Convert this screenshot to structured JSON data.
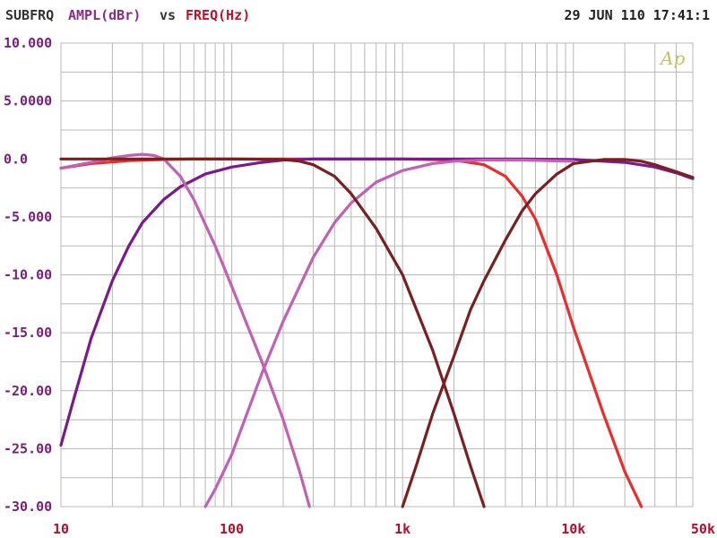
{
  "header": {
    "prefix": "SUBFRQ",
    "yaxis": "AMPL(dBr)",
    "vs": "vs",
    "xaxis": "FREQ(Hz)",
    "timestamp": "29 JUN 110 17:41:1"
  },
  "logo": "Ap",
  "colors": {
    "prefix": "#333333",
    "yaxis": "#8a2a8a",
    "vs": "#333333",
    "xaxis": "#c0102a",
    "grid": "#b8b8b8",
    "axis_text_y": "#7a1f7a",
    "axis_text_x": "#b0102a"
  },
  "chart_data": {
    "type": "line",
    "x_scale": "log",
    "xlim": [
      10,
      50000
    ],
    "ylim": [
      -30,
      10
    ],
    "grid": true,
    "xlabel": "FREQ(Hz)",
    "ylabel": "AMPL(dBr)",
    "y_ticks": [
      {
        "value": 10,
        "label": "10.000"
      },
      {
        "value": 5,
        "label": "5.0000"
      },
      {
        "value": 0,
        "label": "0.0"
      },
      {
        "value": -5,
        "label": "-5.000"
      },
      {
        "value": -10,
        "label": "-10.00"
      },
      {
        "value": -15,
        "label": "-15.00"
      },
      {
        "value": -20,
        "label": "-20.00"
      },
      {
        "value": -25,
        "label": "-25.00"
      },
      {
        "value": -30,
        "label": "-30.00"
      }
    ],
    "x_ticks": [
      {
        "value": 10,
        "label": "10"
      },
      {
        "value": 100,
        "label": "100"
      },
      {
        "value": 1000,
        "label": "1k"
      },
      {
        "value": 10000,
        "label": "10k"
      },
      {
        "value": 50000,
        "label": "50k"
      }
    ],
    "series": [
      {
        "color": "#ee2b2b",
        "x": [
          10,
          15,
          25,
          40,
          60,
          100,
          300,
          1000,
          2000,
          3000,
          4000,
          5000,
          6000,
          8000,
          10000,
          15000,
          20000,
          25000
        ],
        "y": [
          -0.8,
          -0.4,
          -0.15,
          -0.05,
          0,
          0,
          0,
          0,
          -0.1,
          -0.5,
          -1.5,
          -3.2,
          -5.2,
          -10,
          -14.5,
          -22,
          -27,
          -30
        ]
      },
      {
        "color": "#7a1a8a",
        "x": [
          10,
          12,
          15,
          20,
          25,
          30,
          40,
          50,
          70,
          100,
          150,
          200,
          300,
          1000,
          3000,
          5000,
          10000,
          20000,
          30000,
          40000,
          50000
        ],
        "y": [
          -24.7,
          -20.5,
          -15.5,
          -10.5,
          -7.5,
          -5.5,
          -3.5,
          -2.4,
          -1.3,
          -0.7,
          -0.3,
          -0.1,
          0,
          0,
          0,
          0,
          -0.05,
          -0.3,
          -0.7,
          -1.2,
          -1.7
        ]
      },
      {
        "color": "#c260b4",
        "x": [
          10,
          15,
          20,
          25,
          30,
          35,
          40,
          50,
          60,
          80,
          100,
          150,
          200,
          250,
          285
        ],
        "y": [
          -0.8,
          -0.3,
          0.1,
          0.3,
          0.4,
          0.3,
          0,
          -1.5,
          -3.5,
          -7.5,
          -11,
          -17.5,
          -22.5,
          -27,
          -30
        ]
      },
      {
        "color": "#c260b4",
        "x": [
          70,
          80,
          100,
          150,
          200,
          300,
          400,
          500,
          700,
          1000,
          1500,
          2000,
          3000,
          5000,
          10000
        ],
        "y": [
          -30,
          -28.5,
          -25.5,
          -18.5,
          -14,
          -8.5,
          -5.5,
          -3.8,
          -2,
          -1,
          -0.4,
          -0.2,
          -0.1,
          -0.1,
          -0.2
        ]
      },
      {
        "color": "#7a1f1f",
        "x": [
          10,
          50,
          100,
          200,
          250,
          300,
          400,
          500,
          700,
          1000,
          1500,
          2000,
          2500,
          3000
        ],
        "y": [
          0,
          0,
          0,
          -0.05,
          -0.2,
          -0.5,
          -1.5,
          -3,
          -6,
          -10,
          -16.5,
          -22,
          -26.5,
          -30
        ]
      },
      {
        "color": "#7a1f1f",
        "x": [
          1000,
          1200,
          1500,
          2000,
          2500,
          3000,
          4000,
          5000,
          6000,
          8000,
          10000,
          15000,
          20000,
          25000,
          30000,
          40000,
          50000
        ],
        "y": [
          -30,
          -26.5,
          -22,
          -17,
          -13,
          -10.5,
          -7,
          -4.5,
          -3,
          -1.3,
          -0.4,
          -0.05,
          -0.05,
          -0.2,
          -0.5,
          -1.1,
          -1.6
        ]
      }
    ]
  }
}
